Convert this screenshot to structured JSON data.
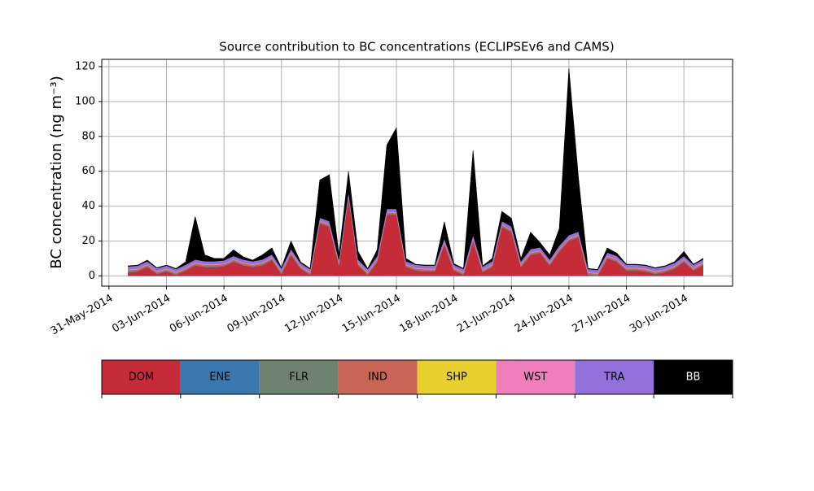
{
  "chart_data": {
    "type": "stacked_area",
    "title": "Source contribution to BC concentrations (ECLIPSEv6 and CAMS)",
    "y_label": "BC concentration (ng m⁻³)",
    "x": [
      "2014-06-01 00:00",
      "2014-06-01 12:00",
      "2014-06-02 00:00",
      "2014-06-02 12:00",
      "2014-06-03 00:00",
      "2014-06-03 12:00",
      "2014-06-04 00:00",
      "2014-06-04 12:00",
      "2014-06-05 00:00",
      "2014-06-05 12:00",
      "2014-06-06 00:00",
      "2014-06-06 12:00",
      "2014-06-07 00:00",
      "2014-06-07 12:00",
      "2014-06-08 00:00",
      "2014-06-08 12:00",
      "2014-06-09 00:00",
      "2014-06-09 12:00",
      "2014-06-10 00:00",
      "2014-06-10 12:00",
      "2014-06-11 00:00",
      "2014-06-11 12:00",
      "2014-06-12 00:00",
      "2014-06-12 12:00",
      "2014-06-13 00:00",
      "2014-06-13 12:00",
      "2014-06-14 00:00",
      "2014-06-14 12:00",
      "2014-06-15 00:00",
      "2014-06-15 12:00",
      "2014-06-16 00:00",
      "2014-06-16 12:00",
      "2014-06-17 00:00",
      "2014-06-17 12:00",
      "2014-06-18 00:00",
      "2014-06-18 12:00",
      "2014-06-19 00:00",
      "2014-06-19 12:00",
      "2014-06-20 00:00",
      "2014-06-20 12:00",
      "2014-06-21 00:00",
      "2014-06-21 12:00",
      "2014-06-22 00:00",
      "2014-06-22 12:00",
      "2014-06-23 00:00",
      "2014-06-23 12:00",
      "2014-06-24 00:00",
      "2014-06-24 12:00",
      "2014-06-25 00:00",
      "2014-06-25 12:00",
      "2014-06-26 00:00",
      "2014-06-26 12:00",
      "2014-06-27 00:00",
      "2014-06-27 12:00",
      "2014-06-28 00:00",
      "2014-06-28 12:00",
      "2014-06-29 00:00",
      "2014-06-29 12:00",
      "2014-06-30 00:00",
      "2014-06-30 12:00",
      "2014-07-01 00:00"
    ],
    "series": [
      {
        "name": "DOM",
        "color": "#c62b38",
        "values": [
          2,
          2.5,
          5,
          1,
          2.5,
          0.5,
          3,
          6,
          5,
          5,
          5.5,
          8,
          6,
          5,
          6,
          9,
          1,
          12,
          4,
          0.5,
          30,
          28,
          6,
          45,
          6,
          0.5,
          8,
          35,
          35,
          5,
          3,
          2.5,
          2.5,
          18,
          3,
          0.5,
          20,
          2,
          5,
          28,
          25,
          5,
          12,
          13,
          6,
          14,
          20,
          22,
          0.5,
          0,
          10,
          8,
          3,
          3,
          2.5,
          1,
          2,
          4,
          8,
          3,
          6
        ]
      },
      {
        "name": "ENE",
        "color": "#3b78b0",
        "values": [
          0.2,
          0.2,
          0.2,
          0.2,
          0.2,
          0.2,
          0.2,
          0.2,
          0.2,
          0.2,
          0.2,
          0.2,
          0.2,
          0.2,
          0.2,
          0.2,
          0.2,
          0.2,
          0.2,
          0.2,
          0.2,
          0.2,
          0.2,
          0.2,
          0.2,
          0.2,
          0.2,
          0.2,
          0.2,
          0.2,
          0.2,
          0.2,
          0.2,
          0.2,
          0.2,
          0.2,
          0.2,
          0.2,
          0.2,
          0.2,
          0.2,
          0.2,
          0.2,
          0.2,
          0.2,
          0.2,
          0.2,
          0.2,
          0.2,
          0.2,
          0.2,
          0.2,
          0.2,
          0.2,
          0.2,
          0.2,
          0.2,
          0.2,
          0.2,
          0.2,
          0.2
        ]
      },
      {
        "name": "FLR",
        "color": "#6f8270",
        "values": [
          0.3,
          0.3,
          0.3,
          0.3,
          0.3,
          0.3,
          0.3,
          0.3,
          0.3,
          0.3,
          0.3,
          0.3,
          0.3,
          0.3,
          0.3,
          0.3,
          0.3,
          0.3,
          0.3,
          0.3,
          0.3,
          0.3,
          0.3,
          0.3,
          0.3,
          0.3,
          0.3,
          0.3,
          0.3,
          0.3,
          0.3,
          0.3,
          0.3,
          0.3,
          0.3,
          0.3,
          0.3,
          0.3,
          0.3,
          0.3,
          0.3,
          0.3,
          0.3,
          0.3,
          0.3,
          0.3,
          0.3,
          0.3,
          0.3,
          0.3,
          0.3,
          0.3,
          0.3,
          0.3,
          0.3,
          0.3,
          0.3,
          0.3,
          0.3,
          0.3,
          0.3
        ]
      },
      {
        "name": "IND",
        "color": "#c96557",
        "values": [
          0.8,
          0.8,
          0.8,
          0.8,
          0.8,
          0.8,
          0.8,
          0.8,
          0.8,
          0.8,
          0.8,
          0.8,
          0.8,
          0.8,
          0.8,
          0.8,
          0.8,
          0.8,
          0.8,
          0.8,
          0.8,
          0.8,
          0.8,
          0.8,
          0.8,
          0.8,
          0.8,
          0.8,
          0.8,
          0.8,
          0.8,
          0.8,
          0.8,
          0.8,
          0.8,
          0.8,
          0.8,
          0.8,
          0.8,
          0.8,
          0.8,
          0.8,
          0.8,
          0.8,
          0.8,
          0.8,
          0.8,
          0.8,
          0.8,
          0.8,
          0.8,
          0.8,
          0.8,
          0.8,
          0.8,
          0.8,
          0.8,
          0.8,
          0.8,
          0.8,
          0.8
        ]
      },
      {
        "name": "SHP",
        "color": "#e8cf30",
        "values": [
          0.1,
          0.1,
          0.1,
          0.1,
          0.1,
          0.1,
          0.1,
          0.1,
          0.1,
          0.1,
          0.1,
          0.1,
          0.1,
          0.1,
          0.1,
          0.1,
          0.1,
          0.1,
          0.1,
          0.1,
          0.1,
          0.1,
          0.1,
          0.1,
          0.1,
          0.1,
          0.1,
          0.1,
          0.1,
          0.1,
          0.1,
          0.1,
          0.1,
          0.1,
          0.1,
          0.1,
          0.1,
          0.1,
          0.1,
          0.1,
          0.1,
          0.1,
          0.1,
          0.1,
          0.1,
          0.1,
          0.1,
          0.1,
          0.1,
          0.1,
          0.1,
          0.1,
          0.1,
          0.1,
          0.1,
          0.1,
          0.1,
          0.1,
          0.1,
          0.1,
          0.1
        ]
      },
      {
        "name": "WST",
        "color": "#f07ebc",
        "values": [
          0.3,
          0.3,
          0.3,
          0.3,
          0.3,
          0.3,
          0.3,
          0.3,
          0.3,
          0.3,
          0.3,
          0.3,
          0.3,
          0.3,
          0.3,
          0.3,
          0.3,
          0.3,
          0.3,
          0.3,
          0.3,
          0.3,
          0.3,
          0.3,
          0.3,
          0.3,
          0.3,
          0.3,
          0.3,
          0.3,
          0.3,
          0.3,
          0.3,
          0.3,
          0.3,
          0.3,
          0.3,
          0.3,
          0.3,
          0.3,
          0.3,
          0.3,
          0.3,
          0.3,
          0.3,
          0.3,
          0.3,
          0.3,
          0.3,
          0.3,
          0.3,
          0.3,
          0.3,
          0.3,
          0.3,
          0.3,
          0.3,
          0.3,
          0.3,
          0.3,
          0.3
        ]
      },
      {
        "name": "TRA",
        "color": "#9370db",
        "values": [
          1.7,
          1.7,
          1.7,
          1.7,
          1.7,
          1.7,
          1.7,
          1.7,
          1.7,
          1.7,
          1.7,
          1.7,
          1.7,
          1.7,
          1.7,
          1.7,
          1.7,
          1.7,
          1.7,
          1.7,
          1.7,
          1.7,
          1.7,
          1.7,
          1.7,
          1.7,
          1.7,
          1.7,
          1.7,
          1.7,
          1.7,
          1.7,
          1.7,
          1.7,
          1.7,
          1.7,
          1.7,
          1.7,
          1.7,
          1.7,
          1.7,
          1.7,
          1.7,
          1.7,
          1.7,
          1.7,
          1.7,
          1.7,
          1.7,
          1.7,
          1.7,
          1.7,
          1.7,
          1.7,
          1.7,
          1.7,
          1.7,
          1.7,
          1.7,
          1.7,
          1.7
        ]
      },
      {
        "name": "BB",
        "color": "#000000",
        "values": [
          0.3,
          0.3,
          0.6,
          0.3,
          0.3,
          0.3,
          1.6,
          24.6,
          3.6,
          1.6,
          1.1,
          3.6,
          1.6,
          0.6,
          2.6,
          3.6,
          0.3,
          4.6,
          0.6,
          0.3,
          21.6,
          26.6,
          2.6,
          11.6,
          4.6,
          0.3,
          3.6,
          36.6,
          46.6,
          1.6,
          0.3,
          0.3,
          0.3,
          9.6,
          0.6,
          0.3,
          48.6,
          0.3,
          1.6,
          5.6,
          4.6,
          1.6,
          9.6,
          2.6,
          2.6,
          9.6,
          95.6,
          30.6,
          0.3,
          0.3,
          2.6,
          1.6,
          0.3,
          0.3,
          0.3,
          0.3,
          0.3,
          0.6,
          2.6,
          0.3,
          0.6
        ]
      }
    ],
    "xlim": [
      "2014-05-30 15:00",
      "2014-07-02 13:00"
    ],
    "xticks": [
      {
        "value": "2014-05-31",
        "label": "31-May-2014"
      },
      {
        "value": "2014-06-03",
        "label": "03-Jun-2014"
      },
      {
        "value": "2014-06-06",
        "label": "06-Jun-2014"
      },
      {
        "value": "2014-06-09",
        "label": "09-Jun-2014"
      },
      {
        "value": "2014-06-12",
        "label": "12-Jun-2014"
      },
      {
        "value": "2014-06-15",
        "label": "15-Jun-2014"
      },
      {
        "value": "2014-06-18",
        "label": "18-Jun-2014"
      },
      {
        "value": "2014-06-21",
        "label": "21-Jun-2014"
      },
      {
        "value": "2014-06-24",
        "label": "24-Jun-2014"
      },
      {
        "value": "2014-06-27",
        "label": "27-Jun-2014"
      },
      {
        "value": "2014-06-30",
        "label": "30-Jun-2014"
      }
    ],
    "ylim": [
      -5.9,
      124.2
    ],
    "yticks": [
      0,
      20,
      40,
      60,
      80,
      100,
      120
    ],
    "grid": true
  }
}
